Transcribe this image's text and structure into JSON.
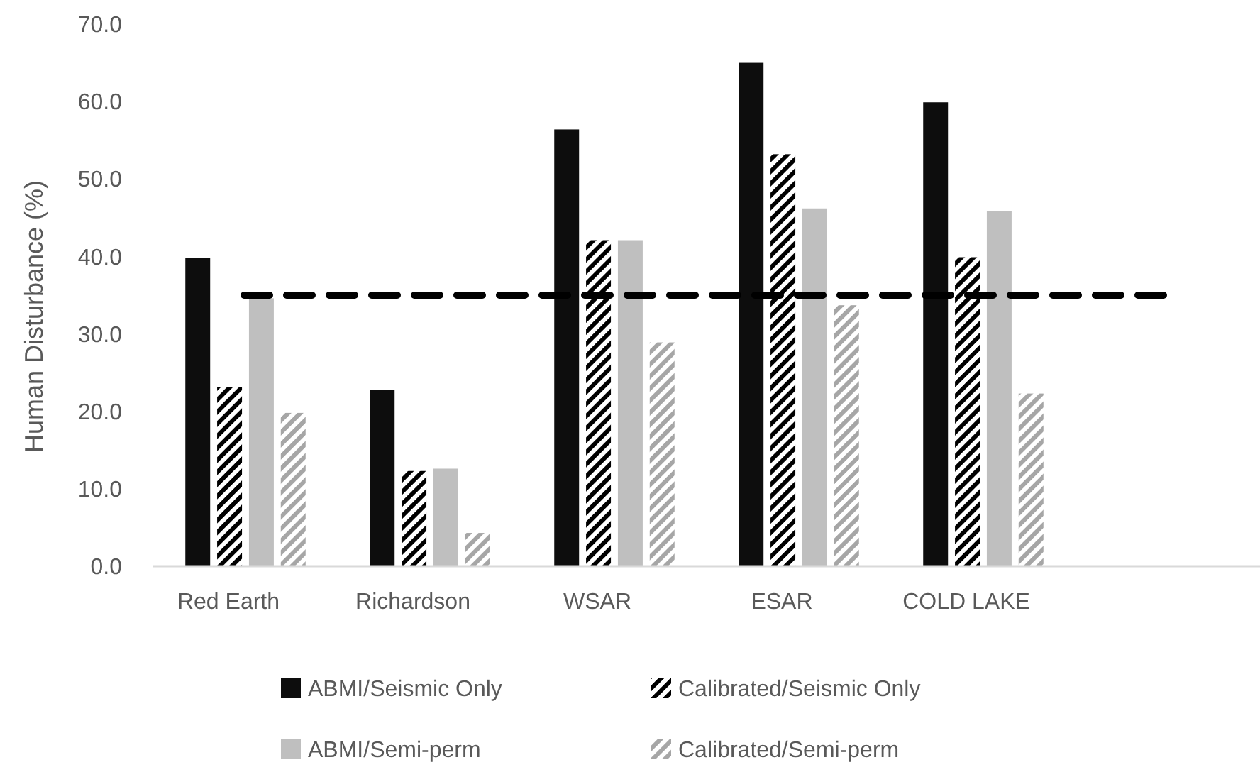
{
  "chart_data": {
    "type": "bar",
    "ylabel": "Human Disturbance (%)",
    "categories": [
      "Red Earth",
      "Richardson",
      "WSAR",
      "ESAR",
      "COLD LAKE",
      null
    ],
    "series": [
      {
        "name": "ABMI/Seismic Only",
        "color": "#0d0d0d",
        "values": [
          39.8,
          22.8,
          56.4,
          65.0,
          59.9,
          null
        ]
      },
      {
        "name": "Calibrated/Seismic Only",
        "color": "#000000",
        "values": [
          23.1,
          12.3,
          42.1,
          53.2,
          39.9,
          null
        ]
      },
      {
        "name": "ABMI/Semi-perm",
        "color": "#bfbfbf",
        "values": [
          34.6,
          12.6,
          42.1,
          46.2,
          45.9,
          null
        ]
      },
      {
        "name": "Calibrated/Semi-perm",
        "color": "#a6a6a6",
        "values": [
          19.8,
          4.3,
          28.9,
          33.7,
          22.3,
          null
        ]
      }
    ],
    "ylim": [
      0,
      70
    ],
    "yticks": [
      {
        "value": 0,
        "label": "0.0"
      },
      {
        "value": 10,
        "label": "10.0"
      },
      {
        "value": 20,
        "label": "20.0"
      },
      {
        "value": 30,
        "label": "30.0"
      },
      {
        "value": 40,
        "label": "40.0"
      },
      {
        "value": 50,
        "label": "50.0"
      },
      {
        "value": 60,
        "label": "60.0"
      },
      {
        "value": 70,
        "label": "70.0"
      }
    ],
    "ref_lines": [
      {
        "axis": "y",
        "value": 35,
        "color": "#000000",
        "line_style": "dashed"
      }
    ],
    "grid": false,
    "legend": "bottom"
  }
}
